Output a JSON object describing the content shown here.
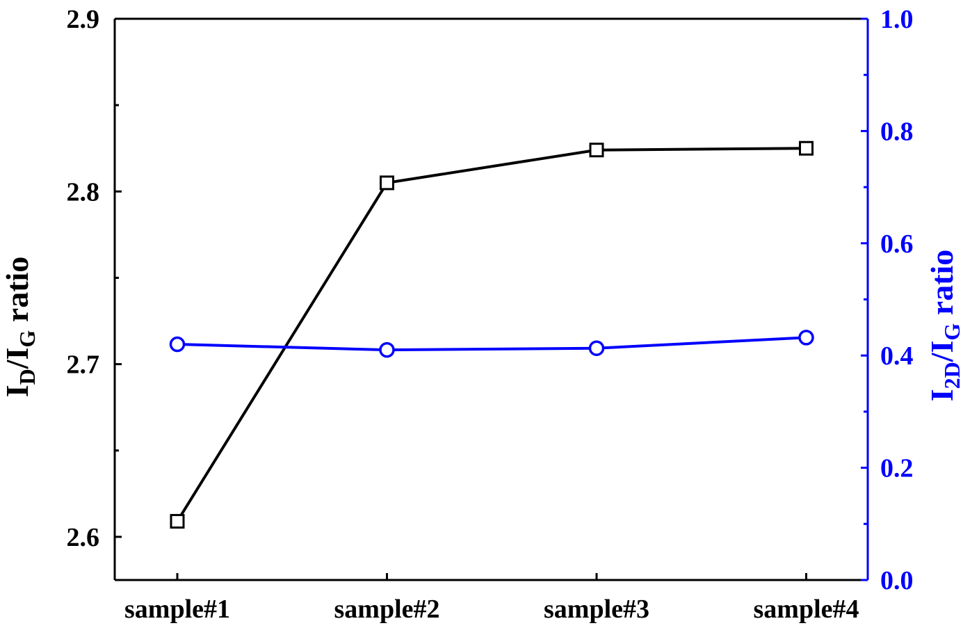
{
  "chart_data": {
    "type": "line",
    "categories": [
      "sample#1",
      "sample#2",
      "sample#3",
      "sample#4"
    ],
    "series": [
      {
        "axis": "left",
        "marker": "open-square",
        "color": "#000000",
        "values": [
          2.609,
          2.805,
          2.824,
          2.825
        ]
      },
      {
        "axis": "right",
        "marker": "open-circle",
        "color": "#0000ff",
        "values": [
          0.42,
          0.41,
          0.413,
          0.432
        ]
      }
    ],
    "y_left": {
      "label_main": "I",
      "label_sub1": "D",
      "label_mid": "/I",
      "label_sub2": "G",
      "label_tail": " ratio",
      "ylim": [
        2.575,
        2.9
      ],
      "ticks": [
        "2.6",
        "2.7",
        "2.8",
        "2.9"
      ],
      "tick_values": [
        2.6,
        2.7,
        2.8,
        2.9
      ],
      "minor_tick_values": [
        2.65,
        2.75,
        2.85
      ],
      "color": "#000000"
    },
    "y_right": {
      "label_main": "I",
      "label_sub1": "2D",
      "label_mid": "/I",
      "label_sub2": "G",
      "label_tail": " ratio",
      "ylim": [
        0.0,
        1.0
      ],
      "ticks": [
        "0.0",
        "0.2",
        "0.4",
        "0.6",
        "0.8",
        "1.0"
      ],
      "tick_values": [
        0.0,
        0.2,
        0.4,
        0.6,
        0.8,
        1.0
      ],
      "minor_tick_values": [
        0.1,
        0.3,
        0.5,
        0.7,
        0.9
      ],
      "color": "#0000ff"
    },
    "grid": false,
    "legend": "none"
  }
}
